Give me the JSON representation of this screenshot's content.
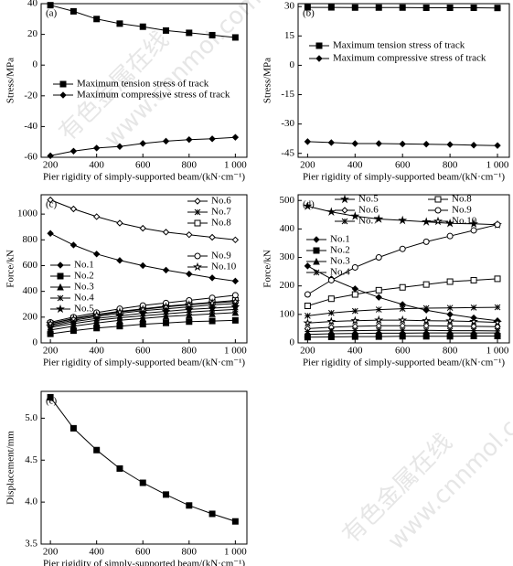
{
  "chart_data": [
    {
      "type": "line",
      "panel": "(a)",
      "xlabel": "Pier rigidity of simply-supported beam/(kN·cm⁻¹)",
      "ylabel": "Stress/MPa",
      "x": [
        200,
        300,
        400,
        500,
        600,
        700,
        800,
        900,
        1000
      ],
      "xlim": [
        160,
        1050
      ],
      "xticks": [
        200,
        400,
        600,
        800,
        {
          "value": 1000,
          "label": "1 000"
        }
      ],
      "ylim": [
        -60,
        40
      ],
      "yticks": [
        40,
        20,
        0,
        -20,
        -40,
        -60
      ],
      "series": [
        {
          "name": "Maximum tension stress of track",
          "color": "#000000",
          "marker": "square",
          "values": [
            39,
            35,
            30,
            27,
            25,
            22.5,
            21,
            19.5,
            18
          ]
        },
        {
          "name": "Maximum compressive stress of track",
          "color": "#000000",
          "marker": "diamond",
          "values": [
            -59,
            -56,
            -54,
            -53,
            -51,
            -49.5,
            -48.5,
            -48,
            -47
          ]
        }
      ]
    },
    {
      "type": "line",
      "panel": "(b)",
      "xlabel": "Pier rigidity of simply-supported beam/(kN·cm⁻¹)",
      "ylabel": "Stress/MPa",
      "x": [
        200,
        300,
        400,
        500,
        600,
        700,
        800,
        900,
        1000
      ],
      "xlim": [
        160,
        1050
      ],
      "xticks": [
        200,
        400,
        600,
        800,
        {
          "value": 1000,
          "label": "1 000"
        }
      ],
      "ylim": [
        -47,
        31.5
      ],
      "yticks": [
        30,
        15,
        0,
        -15,
        -30,
        -45
      ],
      "series": [
        {
          "name": "Maximum tension stress of track",
          "color": "#000000",
          "marker": "square",
          "values": [
            29.6,
            29.6,
            29.5,
            29.5,
            29.5,
            29.4,
            29.4,
            29.4,
            29.3
          ]
        },
        {
          "name": "Maximum compressive stress of track",
          "color": "#000000",
          "marker": "diamond",
          "values": [
            -39,
            -39.5,
            -40,
            -40,
            -40.2,
            -40.3,
            -40.5,
            -40.8,
            -41
          ]
        }
      ]
    },
    {
      "type": "line",
      "panel": "(c)",
      "xlabel": "Pier rigidity of simply-supported beam/(kN·cm⁻¹)",
      "ylabel": "Force/kN",
      "x": [
        200,
        300,
        400,
        500,
        600,
        700,
        800,
        900,
        1000
      ],
      "xlim": [
        160,
        1050
      ],
      "xticks": [
        200,
        400,
        600,
        800,
        {
          "value": 1000,
          "label": "1 000"
        }
      ],
      "ylim": [
        0,
        1150
      ],
      "yticks": [
        0,
        200,
        400,
        600,
        800,
        1000
      ],
      "series": [
        {
          "name": "No.1",
          "color": "#000000",
          "marker": "diamond",
          "values": [
            850,
            760,
            690,
            640,
            600,
            565,
            535,
            505,
            480
          ]
        },
        {
          "name": "No.2",
          "color": "#000000",
          "marker": "square",
          "values": [
            70,
            95,
            115,
            130,
            145,
            155,
            165,
            170,
            175
          ]
        },
        {
          "name": "No.3",
          "color": "#000000",
          "marker": "triangle",
          "values": [
            100,
            130,
            155,
            175,
            190,
            205,
            215,
            225,
            235
          ]
        },
        {
          "name": "No.4",
          "color": "#000000",
          "marker": "cross",
          "values": [
            120,
            150,
            175,
            195,
            210,
            225,
            240,
            250,
            260
          ]
        },
        {
          "name": "No.5",
          "color": "#000000",
          "marker": "star",
          "values": [
            130,
            165,
            190,
            210,
            230,
            245,
            260,
            270,
            280
          ]
        },
        {
          "name": "No.6",
          "color": "#000000",
          "marker": "diamond-open",
          "values": [
            1110,
            1040,
            980,
            930,
            890,
            860,
            840,
            820,
            800
          ]
        },
        {
          "name": "No.7",
          "color": "#000000",
          "marker": "cross",
          "values": [
            140,
            175,
            205,
            230,
            250,
            265,
            280,
            295,
            305
          ]
        },
        {
          "name": "No.8",
          "color": "#000000",
          "marker": "square-open",
          "values": [
            150,
            190,
            220,
            245,
            265,
            285,
            300,
            315,
            330
          ]
        },
        {
          "name": "No.9",
          "color": "#000000",
          "marker": "circle-open",
          "values": [
            160,
            200,
            235,
            265,
            290,
            310,
            330,
            350,
            370
          ]
        },
        {
          "name": "No.10",
          "color": "#000000",
          "marker": "star-open",
          "values": [
            150,
            185,
            215,
            240,
            260,
            280,
            295,
            310,
            320
          ]
        }
      ]
    },
    {
      "type": "line",
      "panel": "(d)",
      "xlabel": "Pier rigidity of simply-supported beam/(kN·cm⁻¹)",
      "ylabel": "Force/kN",
      "x": [
        200,
        300,
        400,
        500,
        600,
        700,
        800,
        900,
        1000
      ],
      "xlim": [
        160,
        1050
      ],
      "xticks": [
        200,
        400,
        600,
        800,
        {
          "value": 1000,
          "label": "1 000"
        }
      ],
      "ylim": [
        0,
        520
      ],
      "yticks": [
        0,
        100,
        200,
        300,
        400,
        500
      ],
      "series": [
        {
          "name": "No.1",
          "color": "#000000",
          "marker": "diamond",
          "values": [
            270,
            225,
            190,
            160,
            135,
            115,
            100,
            88,
            78
          ]
        },
        {
          "name": "No.2",
          "color": "#000000",
          "marker": "square",
          "values": [
            20,
            21,
            22,
            22,
            23,
            23,
            23,
            24,
            24
          ]
        },
        {
          "name": "No.3",
          "color": "#000000",
          "marker": "triangle",
          "values": [
            30,
            32,
            33,
            34,
            34,
            35,
            35,
            35,
            35
          ]
        },
        {
          "name": "No.4",
          "color": "#000000",
          "marker": "cross",
          "values": [
            95,
            105,
            112,
            117,
            120,
            122,
            123,
            124,
            125
          ]
        },
        {
          "name": "No.5",
          "color": "#000000",
          "marker": "star",
          "values": [
            480,
            460,
            445,
            435,
            430,
            425,
            420,
            418,
            415
          ]
        },
        {
          "name": "No.6",
          "color": "#000000",
          "marker": "diamond-open",
          "values": [
            50,
            55,
            58,
            60,
            60,
            60,
            59,
            58,
            57
          ]
        },
        {
          "name": "No.7",
          "color": "#000000",
          "marker": "cross",
          "values": [
            40,
            42,
            43,
            44,
            44,
            44,
            43,
            43,
            42
          ]
        },
        {
          "name": "No.8",
          "color": "#000000",
          "marker": "square-open",
          "values": [
            130,
            155,
            170,
            185,
            195,
            205,
            215,
            220,
            225
          ]
        },
        {
          "name": "No.9",
          "color": "#000000",
          "marker": "circle-open",
          "values": [
            170,
            220,
            265,
            300,
            330,
            355,
            375,
            395,
            415
          ]
        },
        {
          "name": "No.10",
          "color": "#000000",
          "marker": "star-open",
          "values": [
            70,
            75,
            78,
            80,
            80,
            78,
            77,
            75,
            72
          ]
        }
      ]
    },
    {
      "type": "line",
      "panel": "(e)",
      "xlabel": "Pier rigidity of simply-supported beam/(kN·cm⁻¹)",
      "ylabel": "Displacement/mm",
      "x": [
        200,
        300,
        400,
        500,
        600,
        700,
        800,
        900,
        1000
      ],
      "xlim": [
        160,
        1050
      ],
      "xticks": [
        200,
        400,
        600,
        800,
        {
          "value": 1000,
          "label": "1 000"
        }
      ],
      "ylim": [
        3.5,
        5.32
      ],
      "yticks": [
        3.5,
        {
          "value": 4,
          "label": "4.0"
        },
        4.5,
        {
          "value": 5,
          "label": "5.0"
        }
      ],
      "series": [
        {
          "name": null,
          "color": "#000000",
          "marker": "square",
          "values": [
            5.25,
            4.88,
            4.62,
            4.4,
            4.23,
            4.09,
            3.96,
            3.86,
            3.77
          ]
        }
      ]
    }
  ],
  "watermark": {
    "text": "有色金属在线",
    "url": "www.cnnmol.com"
  }
}
